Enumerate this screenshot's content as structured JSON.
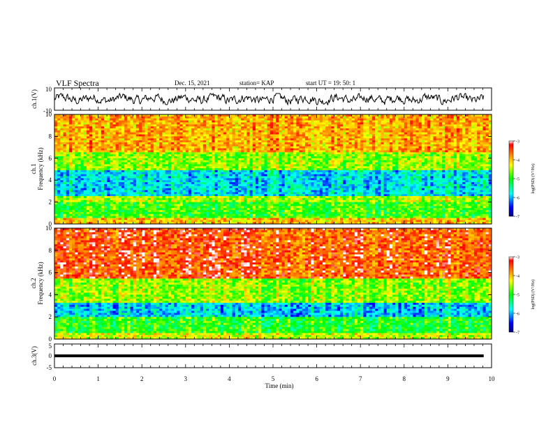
{
  "header": {
    "title": "VLF Spectra",
    "date": "Dec. 15, 2021",
    "station": "station= KAP",
    "start": "start  UT =   19: 50: 1"
  },
  "chart_data": [
    {
      "type": "line",
      "panel": "ch1-waveform",
      "ylabel": "ch.1(V)",
      "ylim": [
        -10,
        10
      ],
      "yticks": [
        "10",
        "-10"
      ],
      "xlim": [
        0,
        10
      ],
      "data_span_min": [
        0,
        9.82
      ],
      "series": [
        {
          "color": "#000000"
        }
      ],
      "level_range_approx": [
        -5,
        5
      ]
    },
    {
      "type": "heatmap",
      "panel": "ch1-spectrogram",
      "ylabel": "ch.1\nFrequency (kHz)",
      "ylim": [
        0,
        10
      ],
      "yticks": [
        "0",
        "2",
        "4",
        "6",
        "8",
        "10"
      ],
      "xlim": [
        0,
        10
      ],
      "bands_khz_log10_psd": [
        {
          "from": 0,
          "to": 0.6,
          "value": -4.0
        },
        {
          "from": 0.6,
          "to": 2.0,
          "value": -4.9
        },
        {
          "from": 2.0,
          "to": 2.6,
          "value": -4.5
        },
        {
          "from": 2.6,
          "to": 5.0,
          "value": -5.8
        },
        {
          "from": 5.0,
          "to": 6.5,
          "value": -4.6
        },
        {
          "from": 6.5,
          "to": 10.0,
          "value": -3.9
        }
      ],
      "colorbar": {
        "label": "log(PSD) (V²/Hz)",
        "range": [
          -7,
          -3
        ],
        "ticks": [
          "-3",
          "-4",
          "-5",
          "-6",
          "-7"
        ]
      }
    },
    {
      "type": "heatmap",
      "panel": "ch2-spectrogram",
      "ylabel": "ch.2\nFrequency (kHz)",
      "ylim": [
        0,
        10
      ],
      "yticks": [
        "0",
        "2",
        "4",
        "6",
        "8",
        "10"
      ],
      "xlim": [
        0,
        10
      ],
      "bands_khz_log10_psd": [
        {
          "from": 0,
          "to": 0.5,
          "value": -4.4
        },
        {
          "from": 0.5,
          "to": 2.0,
          "value": -5.0
        },
        {
          "from": 2.0,
          "to": 3.3,
          "value": -5.9
        },
        {
          "from": 3.3,
          "to": 5.5,
          "value": -4.6
        },
        {
          "from": 5.5,
          "to": 10.0,
          "value": -3.5
        }
      ],
      "colorbar": {
        "label": "log(PSD) (V²/Hz)",
        "range": [
          -7,
          -3
        ],
        "ticks": [
          "-3",
          "-4",
          "-5",
          "-6",
          "-7"
        ]
      }
    },
    {
      "type": "line",
      "panel": "ch3-waveform",
      "ylabel": "ch.3(V)",
      "ylim": [
        -5,
        5
      ],
      "yticks": [
        "5",
        "0",
        "-5"
      ],
      "xlim": [
        0,
        10
      ],
      "xticks": [
        "0",
        "1",
        "2",
        "3",
        "4",
        "5",
        "6",
        "7",
        "8",
        "9",
        "10"
      ],
      "xlabel": "Time  (min)",
      "series": [
        {
          "color": "#000000"
        }
      ],
      "level_approx": 0
    }
  ]
}
